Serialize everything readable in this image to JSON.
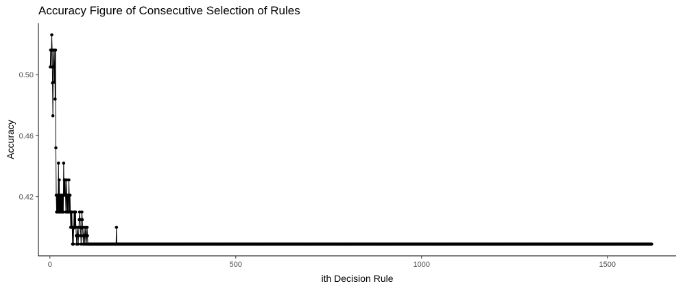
{
  "chart_data": {
    "type": "line",
    "title": "Accuracy Figure of Consecutive Selection of Rules",
    "xlabel": "ith Decision Rule",
    "ylabel": "Accuracy",
    "xlim": [
      -31,
      1685
    ],
    "ylim": [
      0.3813,
      0.5336
    ],
    "x_ticks": [
      0,
      500,
      1000,
      1500
    ],
    "x_tick_labels": [
      "0",
      "500",
      "1000",
      "1500"
    ],
    "y_ticks": [
      0.42,
      0.46,
      0.5
    ],
    "y_tick_labels": [
      "0.42",
      "0.46",
      "0.50"
    ],
    "grid": false,
    "markers": true,
    "series": [
      {
        "color": "#000000",
        "points": [
          [
            1,
            0.505
          ],
          [
            2,
            0.516
          ],
          [
            3,
            0.505
          ],
          [
            4,
            0.516
          ],
          [
            5,
            0.526
          ],
          [
            6,
            0.516
          ],
          [
            8,
            0.473
          ],
          [
            9,
            0.505
          ],
          [
            10,
            0.516
          ],
          [
            11,
            0.505
          ],
          [
            12,
            0.495
          ],
          [
            13,
            0.516
          ],
          [
            14,
            0.484
          ],
          [
            15,
            0.516
          ],
          [
            16,
            0.452
          ],
          [
            17,
            0.421
          ],
          [
            18,
            0.41
          ],
          [
            19,
            0.421
          ],
          [
            20,
            0.41
          ],
          [
            21,
            0.421
          ],
          [
            22,
            0.41
          ],
          [
            23,
            0.442
          ],
          [
            24,
            0.41
          ],
          [
            25,
            0.431
          ],
          [
            26,
            0.41
          ],
          [
            27,
            0.421
          ],
          [
            28,
            0.41
          ],
          [
            29,
            0.421
          ],
          [
            30,
            0.41
          ],
          [
            31,
            0.421
          ],
          [
            32,
            0.41
          ],
          [
            33,
            0.421
          ],
          [
            34,
            0.41
          ],
          [
            35,
            0.421
          ],
          [
            36,
            0.41
          ],
          [
            37,
            0.442
          ],
          [
            38,
            0.421
          ],
          [
            39,
            0.431
          ],
          [
            40,
            0.421
          ],
          [
            41,
            0.431
          ],
          [
            42,
            0.421
          ],
          [
            43,
            0.41
          ],
          [
            44,
            0.421
          ],
          [
            45,
            0.431
          ],
          [
            46,
            0.41
          ],
          [
            47,
            0.421
          ],
          [
            48,
            0.41
          ],
          [
            49,
            0.421
          ],
          [
            50,
            0.41
          ],
          [
            51,
            0.431
          ],
          [
            52,
            0.421
          ],
          [
            53,
            0.41
          ],
          [
            54,
            0.421
          ],
          [
            55,
            0.41
          ],
          [
            56,
            0.4
          ],
          [
            57,
            0.41
          ],
          [
            58,
            0.4
          ],
          [
            59,
            0.41
          ],
          [
            60,
            0.4
          ],
          [
            61,
            0.389
          ],
          [
            62,
            0.4
          ],
          [
            63,
            0.389
          ],
          [
            65,
            0.41
          ],
          [
            66,
            0.4
          ],
          [
            67,
            0.41
          ],
          [
            68,
            0.4
          ],
          [
            69,
            0.41
          ],
          [
            70,
            0.4
          ],
          [
            72,
            0.389
          ],
          [
            74,
            0.4
          ],
          [
            76,
            0.389
          ],
          [
            78,
            0.4
          ],
          [
            80,
            0.41
          ],
          [
            82,
            0.4
          ],
          [
            84,
            0.389
          ],
          [
            86,
            0.41
          ],
          [
            88,
            0.4
          ],
          [
            90,
            0.389
          ],
          [
            92,
            0.4
          ],
          [
            94,
            0.389
          ],
          [
            96,
            0.4
          ],
          [
            98,
            0.389
          ],
          [
            100,
            0.4
          ],
          [
            102,
            0.389
          ],
          [
            105,
            0.389
          ],
          [
            110,
            0.389
          ],
          [
            120,
            0.389
          ],
          [
            150,
            0.389
          ],
          [
            178,
            0.389
          ],
          [
            179,
            0.4
          ],
          [
            180,
            0.389
          ],
          [
            200,
            0.389
          ],
          [
            300,
            0.389
          ],
          [
            400,
            0.389
          ],
          [
            500,
            0.389
          ],
          [
            600,
            0.389
          ],
          [
            700,
            0.389
          ],
          [
            800,
            0.389
          ],
          [
            900,
            0.389
          ],
          [
            1000,
            0.389
          ],
          [
            1100,
            0.389
          ],
          [
            1200,
            0.389
          ],
          [
            1300,
            0.389
          ],
          [
            1400,
            0.389
          ],
          [
            1500,
            0.389
          ],
          [
            1600,
            0.389
          ],
          [
            1619,
            0.389
          ]
        ]
      }
    ]
  }
}
